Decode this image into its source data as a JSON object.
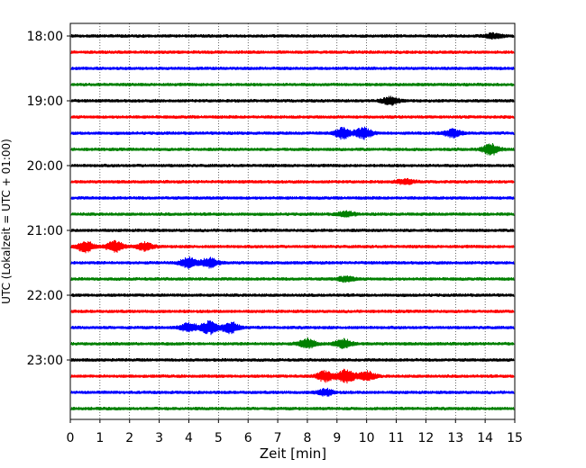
{
  "chart_data": {
    "type": "line",
    "subtype": "helicorder-seismogram",
    "xlabel": "Zeit  [min]",
    "ylabel": "UTC (Lokalzeit = UTC + 01:00)",
    "xlim": [
      0,
      15
    ],
    "x_ticks": [
      "0",
      "1",
      "2",
      "3",
      "4",
      "5",
      "6",
      "7",
      "8",
      "9",
      "10",
      "11",
      "12",
      "13",
      "14",
      "15"
    ],
    "y_tick_labels": [
      "18:00",
      "19:00",
      "20:00",
      "21:00",
      "22:00",
      "23:00"
    ],
    "grid": "vertical dotted lines at each minute",
    "trace_interval_minutes": 15,
    "trace_colors": [
      "#000000",
      "#ff0000",
      "#0000ff",
      "#008000"
    ],
    "traces": [
      {
        "start": "18:00",
        "color": "#000000",
        "events": [
          {
            "x": 14.3,
            "amp": 1.2
          }
        ]
      },
      {
        "start": "18:15",
        "color": "#ff0000",
        "events": []
      },
      {
        "start": "18:30",
        "color": "#0000ff",
        "events": []
      },
      {
        "start": "18:45",
        "color": "#008000",
        "events": []
      },
      {
        "start": "19:00",
        "color": "#000000",
        "events": [
          {
            "x": 10.8,
            "amp": 1.8
          }
        ]
      },
      {
        "start": "19:15",
        "color": "#ff0000",
        "events": []
      },
      {
        "start": "19:30",
        "color": "#0000ff",
        "events": [
          {
            "x": 9.2,
            "amp": 2.5
          },
          {
            "x": 9.9,
            "amp": 2.5
          },
          {
            "x": 12.9,
            "amp": 1.8
          }
        ]
      },
      {
        "start": "19:45",
        "color": "#008000",
        "events": [
          {
            "x": 14.2,
            "amp": 2.5
          }
        ]
      },
      {
        "start": "20:00",
        "color": "#000000",
        "events": []
      },
      {
        "start": "20:15",
        "color": "#ff0000",
        "events": [
          {
            "x": 11.3,
            "amp": 1.2
          }
        ]
      },
      {
        "start": "20:30",
        "color": "#0000ff",
        "events": []
      },
      {
        "start": "20:45",
        "color": "#008000",
        "events": [
          {
            "x": 9.3,
            "amp": 1.2
          }
        ]
      },
      {
        "start": "21:00",
        "color": "#000000",
        "events": []
      },
      {
        "start": "21:15",
        "color": "#ff0000",
        "events": [
          {
            "x": 0.5,
            "amp": 2.5
          },
          {
            "x": 1.5,
            "amp": 2.5
          },
          {
            "x": 2.5,
            "amp": 1.8
          }
        ]
      },
      {
        "start": "21:30",
        "color": "#0000ff",
        "events": [
          {
            "x": 4.0,
            "amp": 2.5
          },
          {
            "x": 4.7,
            "amp": 2.2
          }
        ]
      },
      {
        "start": "21:45",
        "color": "#008000",
        "events": [
          {
            "x": 9.3,
            "amp": 1.2
          }
        ]
      },
      {
        "start": "22:00",
        "color": "#000000",
        "events": []
      },
      {
        "start": "22:15",
        "color": "#ff0000",
        "events": []
      },
      {
        "start": "22:30",
        "color": "#0000ff",
        "events": [
          {
            "x": 4.0,
            "amp": 2.0
          },
          {
            "x": 4.7,
            "amp": 3.0
          },
          {
            "x": 5.4,
            "amp": 2.5
          }
        ]
      },
      {
        "start": "22:45",
        "color": "#008000",
        "events": [
          {
            "x": 8.0,
            "amp": 2.2
          },
          {
            "x": 9.2,
            "amp": 2.2
          }
        ]
      },
      {
        "start": "23:00",
        "color": "#000000",
        "events": []
      },
      {
        "start": "23:15",
        "color": "#ff0000",
        "events": [
          {
            "x": 8.6,
            "amp": 2.5
          },
          {
            "x": 9.3,
            "amp": 3.2
          },
          {
            "x": 10.0,
            "amp": 2.2
          }
        ]
      },
      {
        "start": "23:30",
        "color": "#0000ff",
        "events": [
          {
            "x": 8.6,
            "amp": 1.5
          }
        ]
      },
      {
        "start": "23:45",
        "color": "#008000",
        "events": []
      }
    ]
  }
}
